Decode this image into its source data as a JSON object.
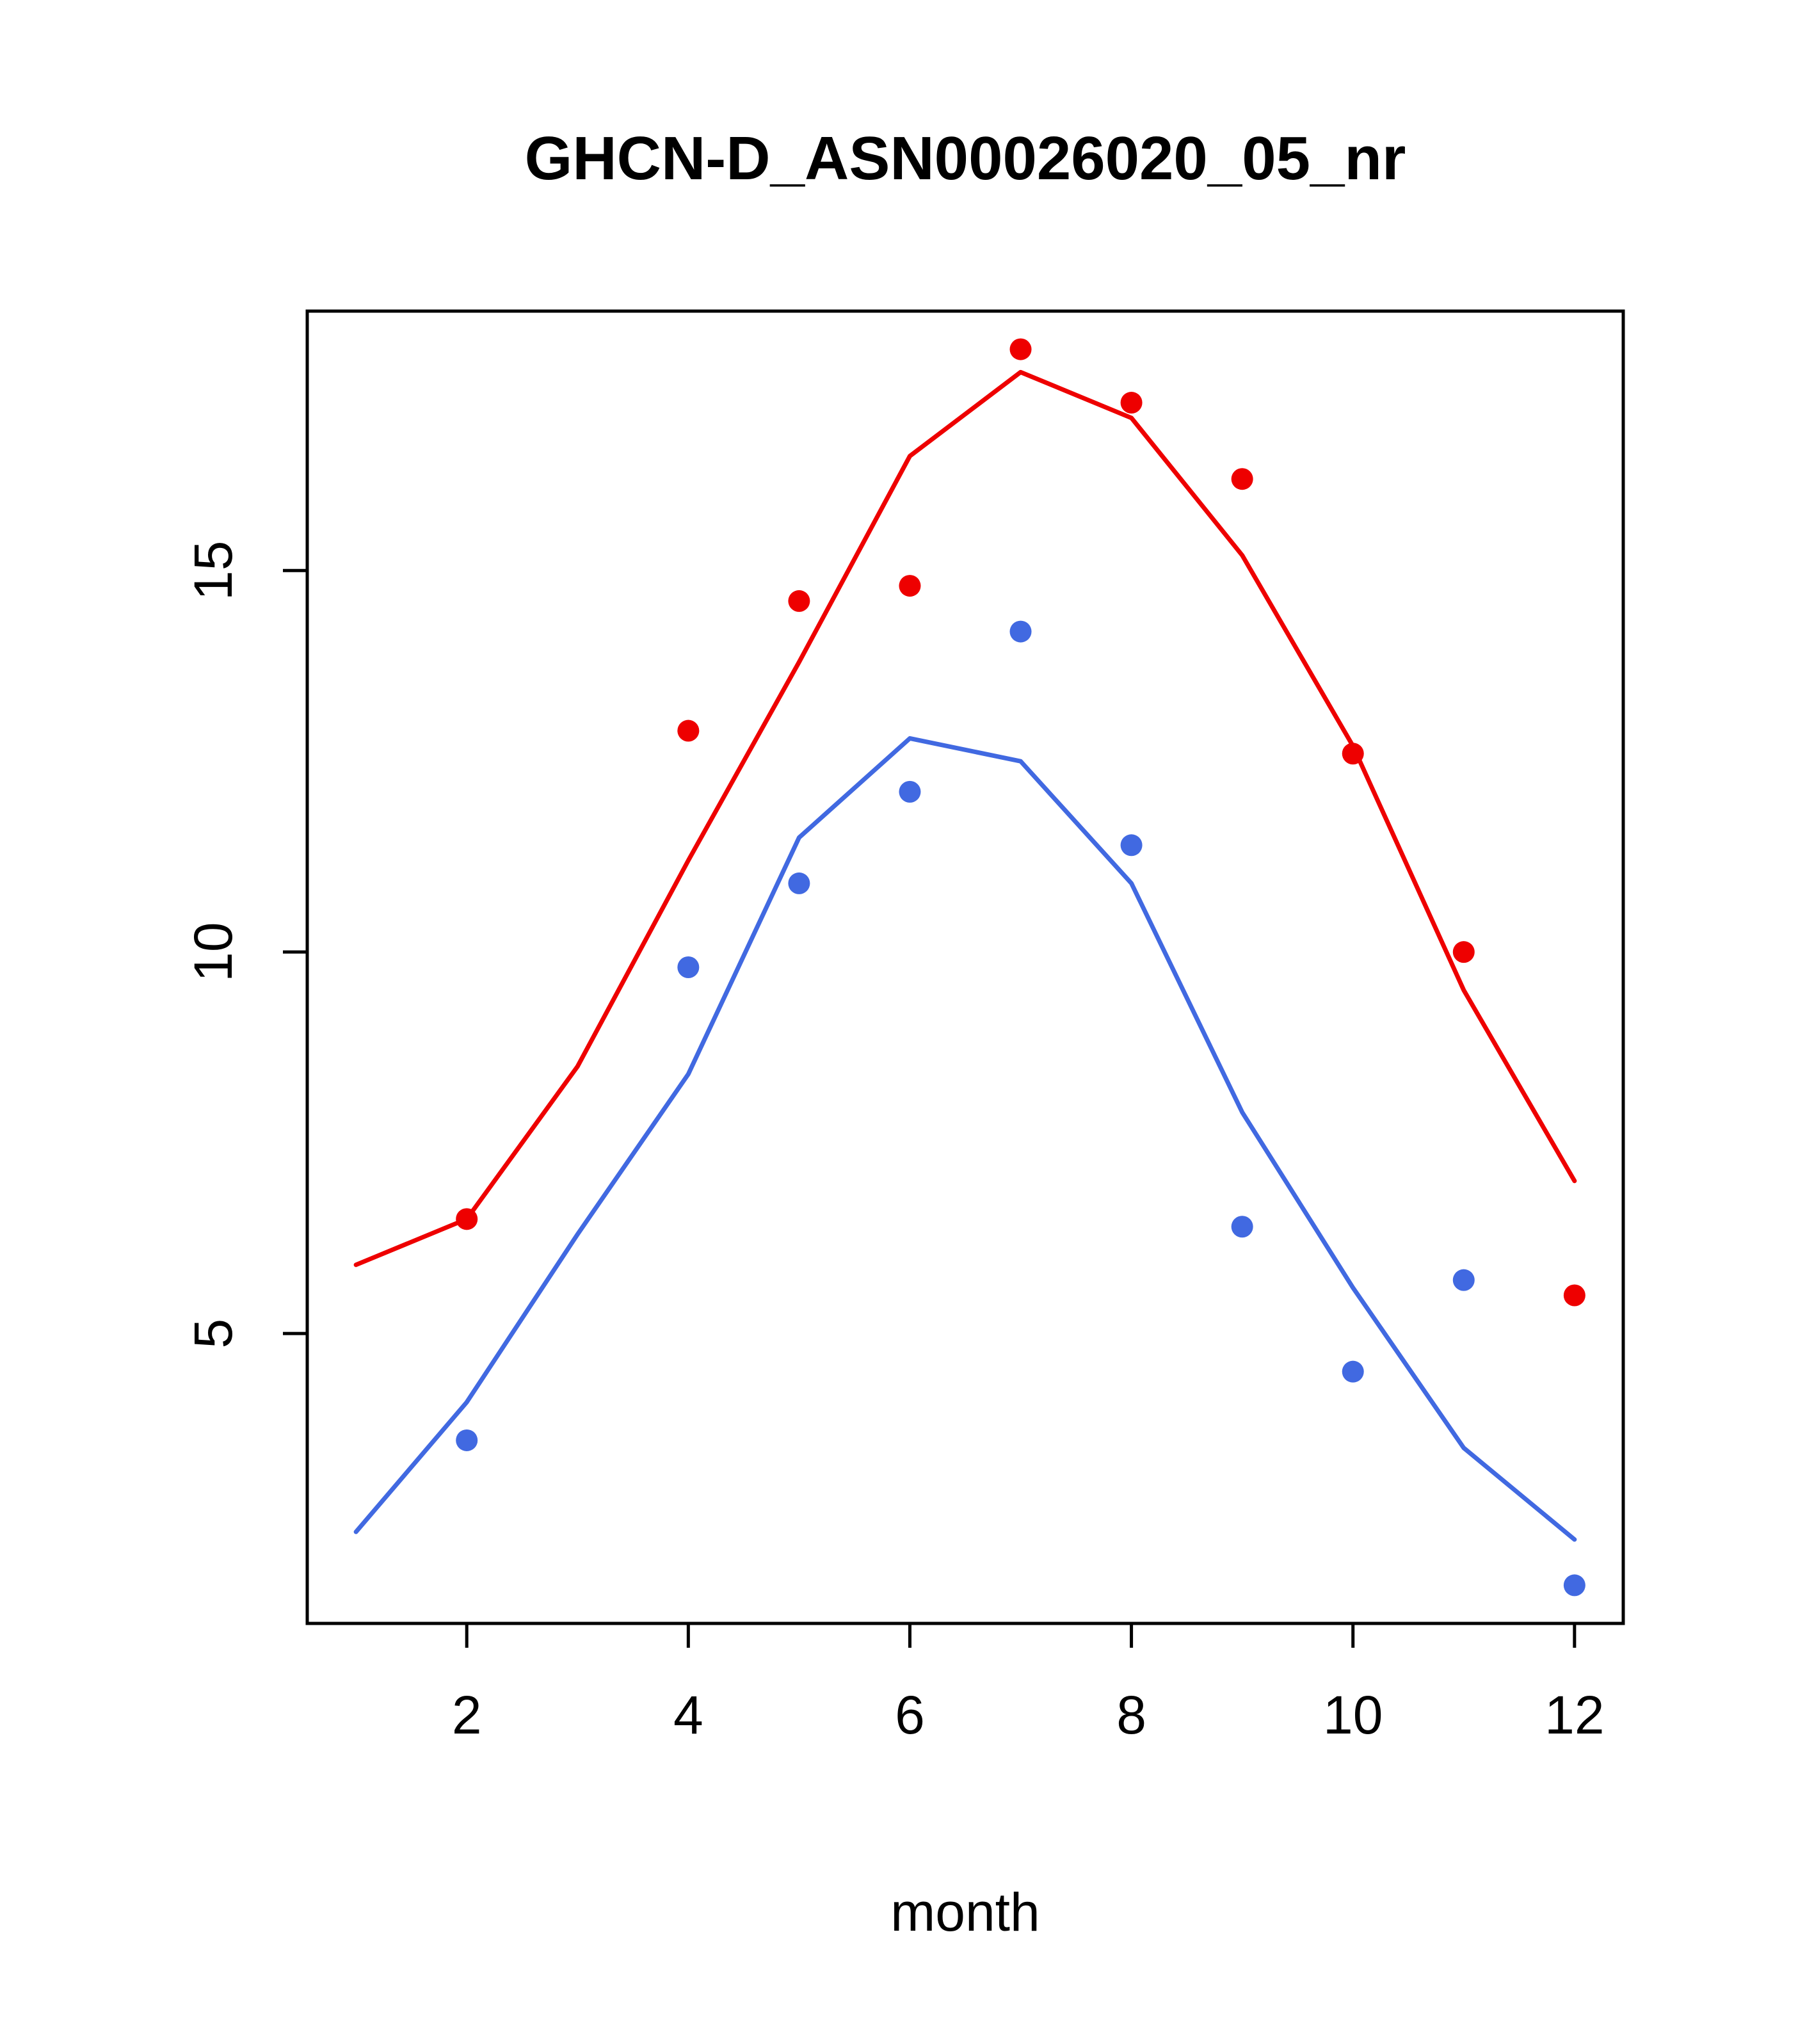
{
  "chart_data": {
    "type": "line",
    "title": "GHCN-D_ASN00026020_05_nr",
    "xlabel": "month",
    "ylabel": "",
    "xlim": [
      0.56,
      12.44
    ],
    "ylim": [
      1.2,
      18.4
    ],
    "xticks": [
      2,
      4,
      6,
      8,
      10,
      12
    ],
    "yticks": [
      5,
      10,
      15
    ],
    "grid": false,
    "legend": "none",
    "colors": {
      "red_series": "#ee0000",
      "blue_series": "#4169e1",
      "axis": "#000000"
    },
    "series": [
      {
        "name": "red-line",
        "kind": "line",
        "color": "#ee0000",
        "x": [
          1,
          2,
          3,
          4,
          5,
          6,
          7,
          8,
          9,
          10,
          11,
          12
        ],
        "y": [
          5.9,
          6.5,
          8.5,
          11.2,
          13.8,
          16.5,
          17.6,
          17.0,
          15.2,
          12.7,
          9.5,
          7.0
        ]
      },
      {
        "name": "red-points",
        "kind": "scatter",
        "color": "#ee0000",
        "x": [
          2,
          4,
          5,
          6,
          7,
          8,
          9,
          10,
          11,
          12
        ],
        "y": [
          6.5,
          12.9,
          14.6,
          14.8,
          17.9,
          17.2,
          16.2,
          12.6,
          10.0,
          5.5
        ]
      },
      {
        "name": "blue-line",
        "kind": "line",
        "color": "#4169e1",
        "x": [
          1,
          2,
          3,
          4,
          5,
          6,
          7,
          8,
          9,
          10,
          11,
          12
        ],
        "y": [
          2.4,
          4.1,
          6.3,
          8.4,
          11.5,
          12.8,
          12.5,
          10.9,
          7.9,
          5.6,
          3.5,
          2.3
        ]
      },
      {
        "name": "blue-points",
        "kind": "scatter",
        "color": "#4169e1",
        "x": [
          2,
          4,
          5,
          6,
          7,
          8,
          9,
          10,
          11,
          12
        ],
        "y": [
          3.6,
          9.8,
          10.9,
          12.1,
          14.2,
          11.4,
          6.4,
          4.5,
          5.7,
          1.7
        ]
      }
    ]
  }
}
